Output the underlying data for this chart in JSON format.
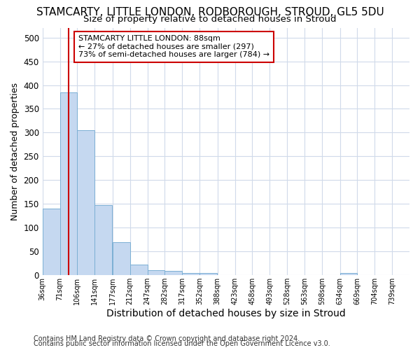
{
  "title1": "STAMCARTY, LITTLE LONDON, RODBOROUGH, STROUD, GL5 5DU",
  "title2": "Size of property relative to detached houses in Stroud",
  "xlabel": "Distribution of detached houses by size in Stroud",
  "ylabel": "Number of detached properties",
  "footer1": "Contains HM Land Registry data © Crown copyright and database right 2024.",
  "footer2": "Contains public sector information licensed under the Open Government Licence v3.0.",
  "annotation_title": "STAMCARTY LITTLE LONDON: 88sqm",
  "annotation_line2": "← 27% of detached houses are smaller (297)",
  "annotation_line3": "73% of semi-detached houses are larger (784) →",
  "bar_color": "#c5d8f0",
  "bar_edge_color": "#7bafd4",
  "redline_color": "#cc0000",
  "redline_x": 88,
  "bins": [
    36,
    71,
    106,
    141,
    177,
    212,
    247,
    282,
    317,
    352,
    388,
    423,
    458,
    493,
    528,
    563,
    598,
    634,
    669,
    704,
    739
  ],
  "bar_values": [
    140,
    385,
    305,
    148,
    70,
    22,
    10,
    9,
    5,
    5,
    0,
    0,
    0,
    0,
    0,
    0,
    0,
    5,
    0,
    0
  ],
  "ylim": [
    0,
    520
  ],
  "yticks": [
    0,
    50,
    100,
    150,
    200,
    250,
    300,
    350,
    400,
    450,
    500
  ],
  "background_color": "#ffffff",
  "plot_bg_color": "#ffffff",
  "grid_color": "#d0daea",
  "title1_fontsize": 11,
  "title2_fontsize": 9.5,
  "annotation_box_color": "#ffffff",
  "annotation_box_edgecolor": "#cc0000",
  "footer_fontsize": 7,
  "ylabel_fontsize": 9,
  "xlabel_fontsize": 10
}
